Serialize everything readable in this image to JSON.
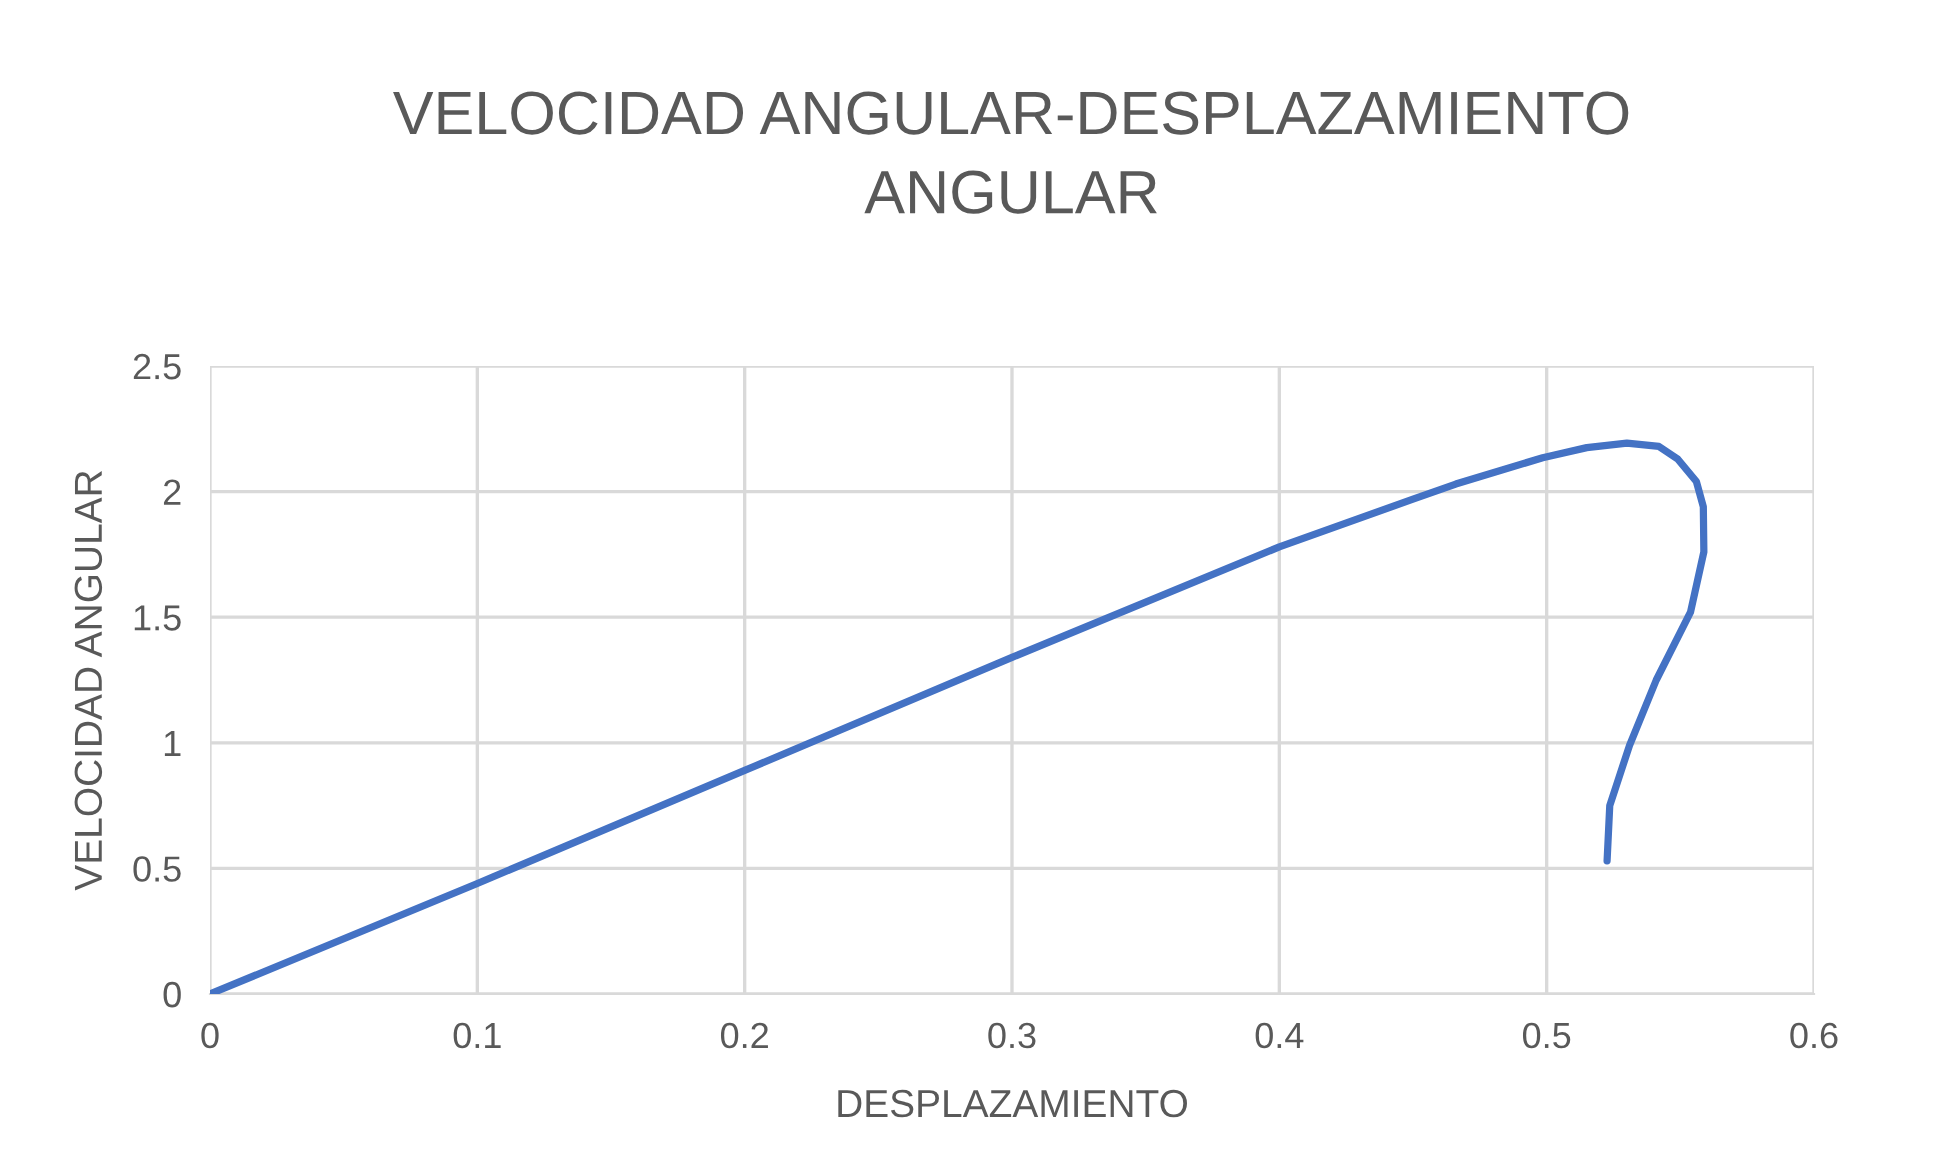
{
  "chart_data": {
    "type": "line",
    "title": "VELOCIDAD ANGULAR-DESPLAZAMIENTO\nANGULAR",
    "xlabel": "DESPLAZAMIENTO",
    "ylabel": "VELOCIDAD ANGULAR",
    "series": [
      {
        "color": "#4472c4",
        "x": [
          0,
          0.1,
          0.2,
          0.3,
          0.35,
          0.4,
          0.45,
          0.466,
          0.4985,
          0.515,
          0.53,
          0.542,
          0.549,
          0.556,
          0.5586,
          0.5588,
          0.5538,
          0.541,
          0.531,
          0.5236,
          0.5226
        ],
        "values": [
          0,
          0.44,
          0.89,
          1.34,
          1.56,
          1.78,
          1.97,
          2.03,
          2.135,
          2.175,
          2.193,
          2.18,
          2.13,
          2.04,
          1.94,
          1.76,
          1.52,
          1.25,
          0.99,
          0.75,
          0.53
        ]
      }
    ],
    "xlim": [
      0,
      0.6
    ],
    "xticks": [
      0,
      0.1,
      0.2,
      0.3,
      0.4,
      0.5,
      0.6
    ],
    "ylim": [
      0,
      2.5
    ],
    "yticks": [
      0,
      0.5,
      1,
      1.5,
      2,
      2.5
    ],
    "grid": true,
    "marker": "none",
    "line_style": "solid"
  }
}
